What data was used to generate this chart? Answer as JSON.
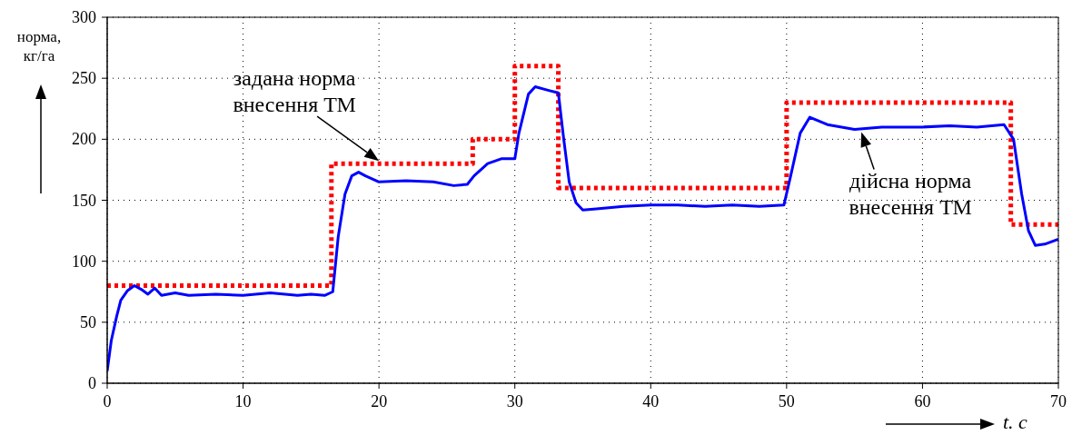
{
  "chart_data": {
    "type": "line",
    "ylabel": "норма, кг/га",
    "xlabel": "t. c",
    "xlim": [
      0,
      70
    ],
    "xticks": [
      0,
      10,
      20,
      30,
      40,
      50,
      60,
      70
    ],
    "ylim": [
      0,
      300
    ],
    "yticks": [
      0,
      50,
      100,
      150,
      200,
      250,
      300
    ],
    "grid": true,
    "series": [
      {
        "type": "step",
        "color": "#ff0000",
        "line_style": "dotted",
        "x": [
          0,
          16.5,
          26.9,
          30,
          33.2,
          50,
          66.5,
          70
        ],
        "values": [
          80,
          180,
          200,
          260,
          160,
          230,
          130,
          130
        ]
      },
      {
        "type": "line",
        "color": "#0000ff",
        "line_style": "solid",
        "x": [
          0,
          0.3,
          0.7,
          1,
          1.5,
          2,
          2.5,
          3,
          3.5,
          4,
          5,
          6,
          8,
          10,
          12,
          14,
          15,
          16,
          16.6,
          17,
          17.5,
          18,
          18.5,
          19,
          20,
          22,
          24,
          25.5,
          26.5,
          27,
          28,
          29,
          30,
          30.3,
          31,
          31.5,
          32.5,
          33.2,
          33.6,
          34,
          34.5,
          35,
          36,
          38,
          40,
          42,
          44,
          46,
          48,
          49.8,
          50.3,
          51,
          51.7,
          53,
          55,
          57,
          60,
          62,
          64,
          66,
          66.7,
          67.3,
          67.8,
          68.3,
          69,
          70
        ],
        "values": [
          10,
          35,
          55,
          68,
          76,
          80,
          77,
          73,
          78,
          72,
          74,
          72,
          73,
          72,
          74,
          72,
          73,
          72,
          75,
          120,
          155,
          170,
          173,
          170,
          165,
          166,
          165,
          162,
          163,
          170,
          180,
          184,
          184,
          205,
          237,
          243,
          240,
          238,
          200,
          165,
          148,
          142,
          143,
          145,
          146,
          146,
          145,
          146,
          145,
          146,
          170,
          205,
          218,
          212,
          208,
          210,
          210,
          211,
          210,
          212,
          200,
          155,
          125,
          113,
          114,
          118
        ]
      }
    ],
    "annotations": [
      {
        "text": "задана норма внесення ТМ",
        "x": 20,
        "y": 180
      },
      {
        "text": "дійсна норма внесення ТМ",
        "x": 55.5,
        "y": 208
      }
    ]
  }
}
